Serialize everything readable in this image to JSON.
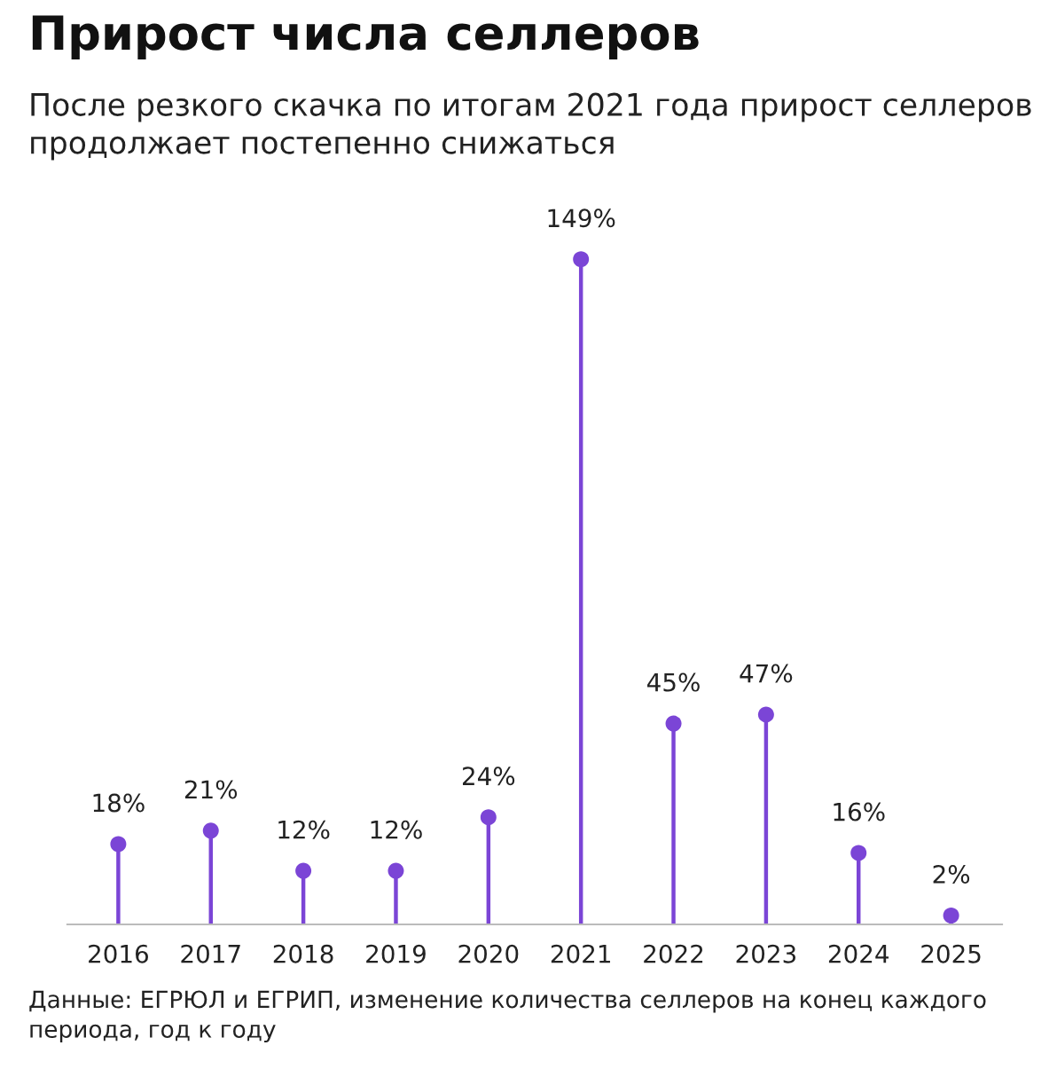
{
  "chart_data": {
    "type": "lollipop",
    "title": "Прирост числа селлеров",
    "subtitle": "После резкого скачка по итогам 2021 года прирост селлеров продолжает постепенно снижаться",
    "categories": [
      "2016",
      "2017",
      "2018",
      "2019",
      "2020",
      "2021",
      "2022",
      "2023",
      "2024",
      "2025"
    ],
    "values": [
      18,
      21,
      12,
      12,
      24,
      149,
      45,
      47,
      16,
      2
    ],
    "value_labels": [
      "18%",
      "21%",
      "12%",
      "12%",
      "24%",
      "149%",
      "45%",
      "47%",
      "16%",
      "2%"
    ],
    "color": "#7b45d6",
    "annotations": [
      "Данные: ЕГРЮЛ и ЕГРИП, изменение количества селлеров на конец каждого периода, год к году"
    ],
    "tick_labels": "x",
    "grid": false,
    "marker": "circle"
  }
}
